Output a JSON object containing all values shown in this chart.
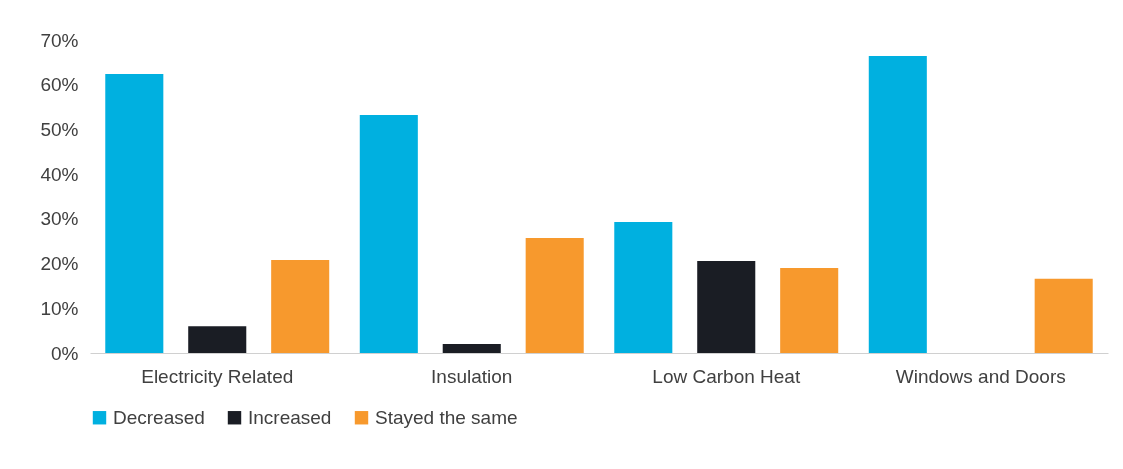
{
  "chart_data": {
    "type": "bar",
    "categories": [
      "Electricity Related",
      "Insulation",
      "Low Carbon Heat",
      "Windows and Doors"
    ],
    "series": [
      {
        "name": "Decreased",
        "color": "#00b0e0",
        "values": [
          62.4,
          53.2,
          29.3,
          66.4
        ]
      },
      {
        "name": "Increased",
        "color": "#1a1d24",
        "values": [
          6,
          2,
          20.6,
          0
        ]
      },
      {
        "name": "Stayed the same",
        "color": "#f7992d",
        "values": [
          20.8,
          25.7,
          19,
          16.6
        ]
      }
    ],
    "ylim": [
      0,
      70
    ],
    "yticks": [
      {
        "value": 0,
        "label": "0%"
      },
      {
        "value": 10,
        "label": "10%"
      },
      {
        "value": 20,
        "label": "20%"
      },
      {
        "value": 30,
        "label": "30%"
      },
      {
        "value": 40,
        "label": "40%"
      },
      {
        "value": 50,
        "label": "50%"
      },
      {
        "value": 60,
        "label": "60%"
      },
      {
        "value": 70,
        "label": "70%"
      }
    ],
    "grid": false,
    "legend": "bottom"
  }
}
